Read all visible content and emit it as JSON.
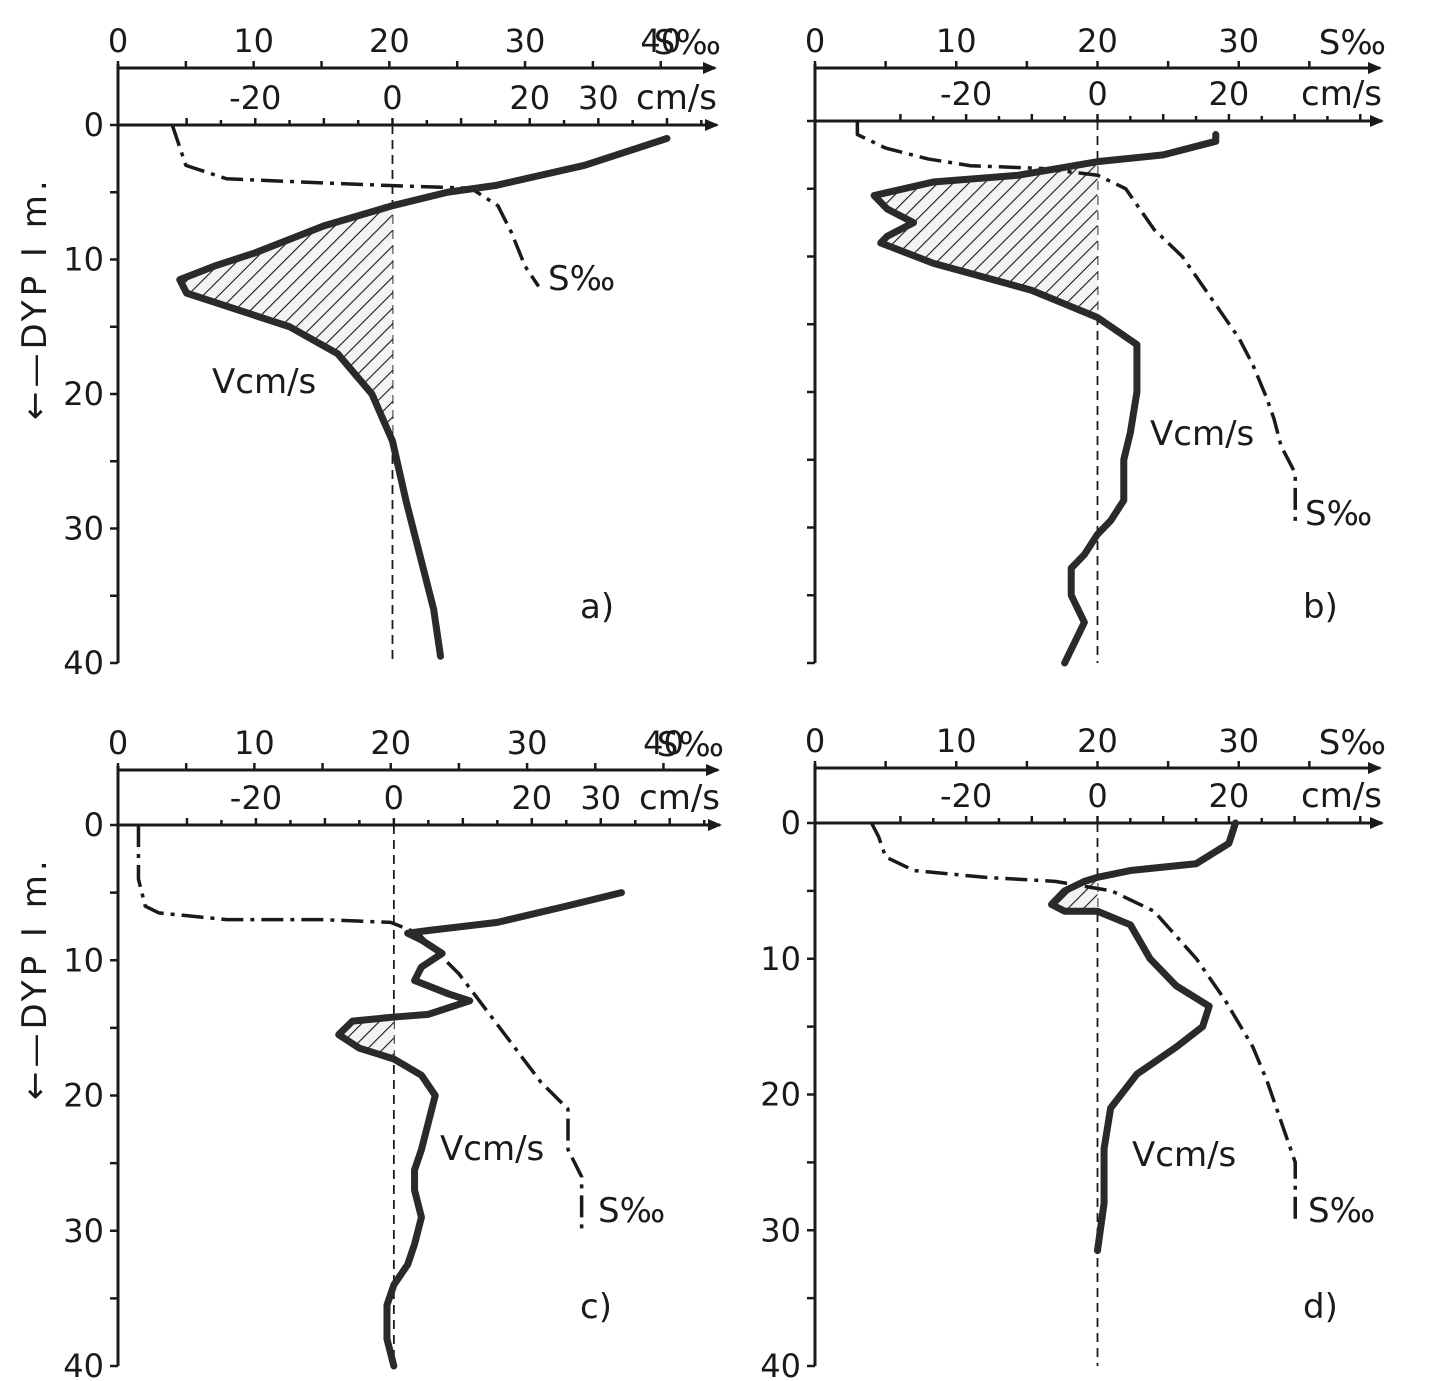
{
  "ylabel": "←—DYP I m.",
  "chart_data": [
    {
      "type": "line",
      "panel": "a)",
      "y_ticks": [
        "0",
        "10",
        "20",
        "30",
        "40"
      ],
      "salinity_axis": {
        "unit": "S‰",
        "ticks": [
          "0",
          "10",
          "20",
          "30",
          "40"
        ],
        "range": [
          0,
          44
        ]
      },
      "velocity_axis": {
        "unit": "cm/s",
        "ticks": [
          "-20",
          "0",
          "20",
          "30"
        ],
        "range": [
          -40,
          47
        ]
      },
      "depth_range": [
        0,
        40
      ],
      "series": [
        {
          "name": "Vcm/s",
          "key": "velocity",
          "x": [
            40,
            28,
            15,
            8,
            0,
            -10,
            -20,
            -26,
            -31,
            -30,
            -24,
            -15,
            -8,
            -3,
            0,
            2,
            4,
            6,
            7
          ],
          "y": [
            1,
            3,
            4.5,
            5,
            6,
            7.5,
            9.5,
            10.5,
            11.5,
            12.5,
            13.5,
            15,
            17,
            20,
            23.5,
            28,
            32,
            36,
            39.5
          ]
        },
        {
          "name": "S‰",
          "key": "salinity",
          "x": [
            4,
            4.5,
            5,
            8,
            15,
            20,
            26,
            28,
            29,
            30,
            31
          ],
          "y": [
            0,
            1.5,
            3,
            4,
            4.3,
            4.5,
            4.7,
            6,
            8,
            10.5,
            12
          ]
        }
      ],
      "hatched_region": {
        "v_from": "velocity",
        "depth_range": [
          6,
          23.5
        ],
        "to_velocity": 0
      }
    },
    {
      "type": "line",
      "panel": "b)",
      "y_ticks": [],
      "salinity_axis": {
        "unit": "S‰",
        "ticks": [
          "0",
          "10",
          "20",
          "30"
        ],
        "range": [
          0,
          40
        ]
      },
      "velocity_axis": {
        "unit": "cm/s",
        "ticks": [
          "-20",
          "0",
          "20"
        ],
        "range": [
          -43,
          43
        ]
      },
      "depth_range": [
        0,
        40
      ],
      "series": [
        {
          "name": "Vcm/s",
          "key": "velocity",
          "x": [
            18,
            18,
            10,
            0,
            -12,
            -25,
            -34,
            -32,
            -28,
            -32,
            -33,
            -25,
            -10,
            -5,
            0,
            3,
            6,
            6,
            5,
            4,
            4,
            2,
            0,
            -2,
            -4,
            -4,
            -2,
            -3,
            -5
          ],
          "y": [
            1,
            1.5,
            2.5,
            3,
            4,
            4.5,
            5.5,
            6.5,
            7.5,
            8.5,
            9,
            10.5,
            12.5,
            13.5,
            14.5,
            15.5,
            16.5,
            20,
            23,
            25,
            28,
            29.5,
            30.5,
            32,
            33,
            35,
            37,
            38,
            40
          ]
        },
        {
          "name": "S‰",
          "key": "salinity",
          "x": [
            3,
            3,
            5,
            8,
            11,
            16,
            20,
            22,
            24,
            26,
            28,
            30,
            31,
            32,
            32.5,
            33,
            34,
            34,
            34
          ],
          "y": [
            0,
            1,
            2,
            2.8,
            3.3,
            3.5,
            4,
            5,
            8,
            10,
            13,
            16,
            18,
            20.5,
            22,
            24,
            26,
            28,
            30
          ]
        }
      ],
      "hatched_region": {
        "v_from": "velocity",
        "depth_range": [
          3,
          14.5
        ],
        "to_velocity": 0
      }
    },
    {
      "type": "line",
      "panel": "c)",
      "y_ticks": [
        "0",
        "10",
        "20",
        "30",
        "40"
      ],
      "salinity_axis": {
        "unit": "S‰",
        "ticks": [
          "0",
          "10",
          "20",
          "30",
          "40"
        ],
        "range": [
          0,
          44
        ]
      },
      "velocity_axis": {
        "unit": "cm/s",
        "ticks": [
          "-20",
          "0",
          "20",
          "30"
        ],
        "range": [
          -40,
          47
        ]
      },
      "depth_range": [
        0,
        40
      ],
      "series": [
        {
          "name": "Vcm/s",
          "key": "velocity",
          "x": [
            33,
            25,
            15,
            5,
            2,
            4,
            7,
            4,
            3,
            8,
            11,
            5,
            0,
            -6,
            -8,
            -5,
            0,
            4,
            6,
            5,
            4,
            3,
            3,
            4,
            3,
            2,
            0,
            -1,
            -1,
            0
          ],
          "y": [
            5,
            6,
            7.2,
            7.8,
            8,
            8.5,
            9.5,
            10.5,
            11.5,
            12.5,
            13,
            14,
            14.2,
            14.5,
            15.5,
            16.5,
            17.3,
            18.5,
            20,
            22,
            24,
            25.5,
            27,
            29,
            31,
            32.5,
            34,
            35.5,
            38,
            40
          ]
        },
        {
          "name": "S‰",
          "key": "salinity",
          "x": [
            1.5,
            1.5,
            2,
            3,
            8,
            15,
            20,
            22,
            23,
            25,
            28,
            31,
            33,
            33,
            34,
            34
          ],
          "y": [
            0,
            4,
            6,
            6.5,
            7,
            7,
            7.2,
            8,
            9,
            11,
            15,
            19,
            21,
            24,
            26,
            30
          ]
        }
      ],
      "hatched_region": {
        "v_from": "velocity",
        "depth_range": [
          14.2,
          17.3
        ],
        "to_velocity": 0
      }
    },
    {
      "type": "line",
      "panel": "d)",
      "y_ticks": [
        "0",
        "10",
        "20",
        "30",
        "40"
      ],
      "salinity_axis": {
        "unit": "S‰",
        "ticks": [
          "0",
          "10",
          "20",
          "30"
        ],
        "range": [
          0,
          40
        ]
      },
      "velocity_axis": {
        "unit": "cm/s",
        "ticks": [
          "-20",
          "0",
          "20"
        ],
        "range": [
          -43,
          43
        ]
      },
      "depth_range": [
        0,
        40
      ],
      "series": [
        {
          "name": "Vcm/s",
          "key": "velocity",
          "x": [
            21,
            20,
            15,
            5,
            0,
            -2,
            -5,
            -7,
            -5,
            0,
            5,
            8,
            12,
            17,
            16,
            12,
            6,
            2,
            1,
            1,
            0
          ],
          "y": [
            0,
            1.5,
            3,
            3.5,
            4,
            4.3,
            5,
            6,
            6.5,
            6.5,
            7.5,
            10,
            12,
            13.5,
            15,
            16.5,
            18.5,
            21,
            24,
            28,
            31.5
          ]
        },
        {
          "name": "S‰",
          "key": "salinity",
          "x": [
            4,
            4.5,
            5,
            7,
            12,
            17,
            21,
            24,
            27,
            29,
            31,
            32,
            33,
            34,
            34
          ],
          "y": [
            0,
            1,
            2.5,
            3.5,
            4,
            4.3,
            5,
            6.5,
            10,
            13,
            16.5,
            19,
            22,
            25,
            29.5
          ]
        }
      ],
      "hatched_region": {
        "v_from": "velocity",
        "depth_range": [
          4,
          6.5
        ],
        "to_velocity": 0
      }
    }
  ]
}
